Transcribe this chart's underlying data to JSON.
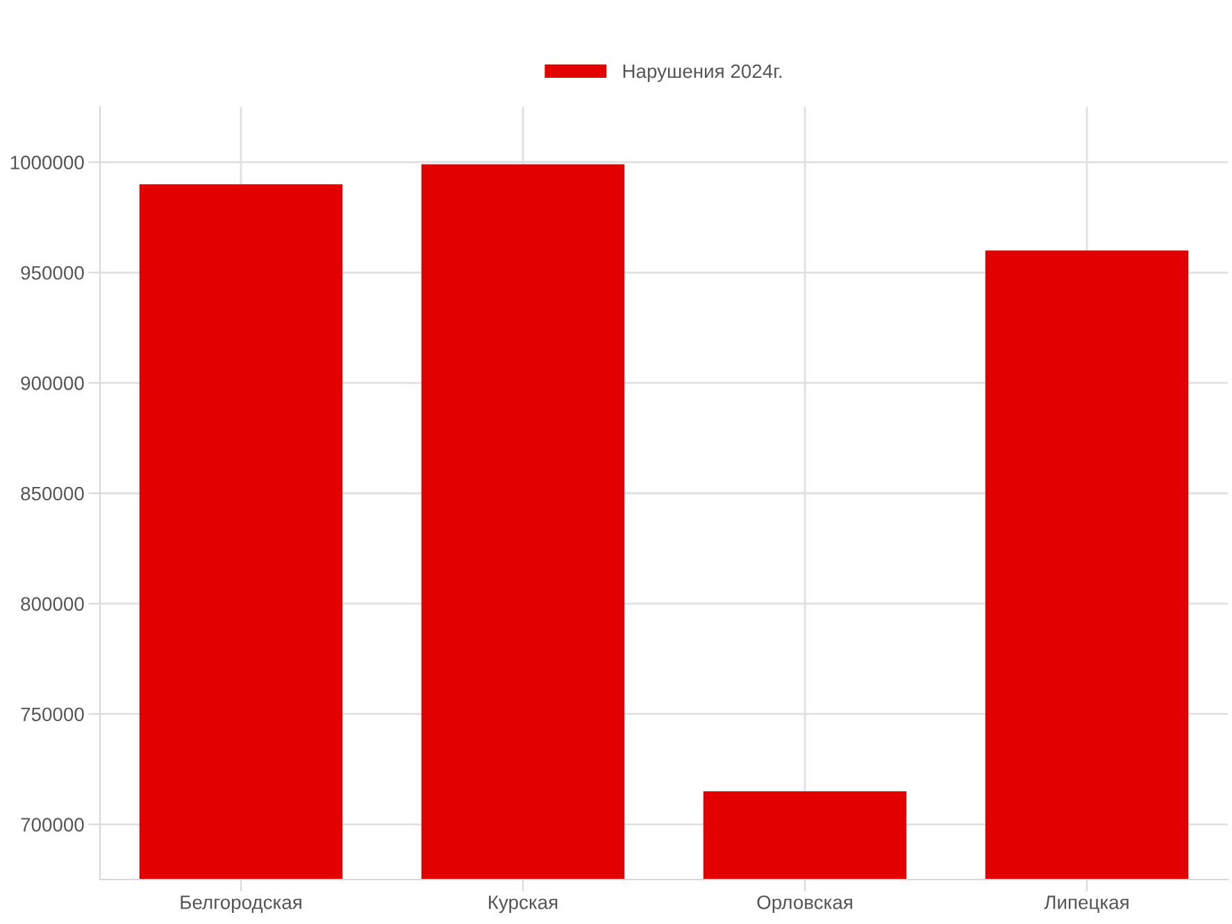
{
  "chart_data": {
    "type": "bar",
    "categories": [
      "Белгородская",
      "Курская",
      "Орловская",
      "Липецкая"
    ],
    "series": [
      {
        "name": "Нарушения 2024г.",
        "color": "#e30000",
        "values": [
          990000,
          999000,
          715000,
          960000
        ]
      }
    ],
    "ylim": [
      675000,
      1025000
    ],
    "yticks": [
      700000,
      750000,
      800000,
      850000,
      900000,
      950000,
      1000000
    ],
    "grid": true,
    "legend": "top"
  }
}
